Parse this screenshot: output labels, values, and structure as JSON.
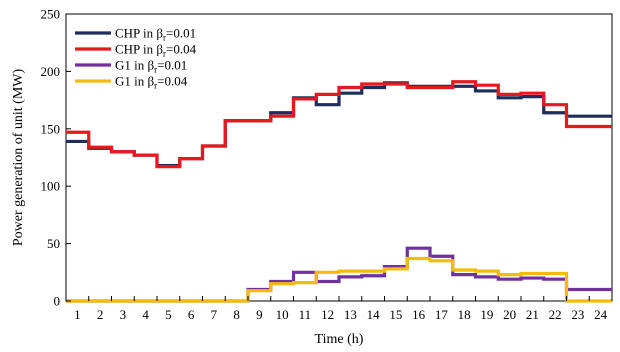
{
  "chart_data": {
    "type": "line",
    "step": true,
    "title": "",
    "xlabel": "Time (h)",
    "ylabel": "Power generation of unit (MW)",
    "xlim": [
      1,
      24
    ],
    "ylim": [
      0,
      250
    ],
    "x_ticks": [
      1,
      2,
      3,
      4,
      5,
      6,
      7,
      8,
      9,
      10,
      11,
      12,
      13,
      14,
      15,
      16,
      17,
      18,
      19,
      20,
      21,
      22,
      23,
      24
    ],
    "y_ticks": [
      0,
      50,
      100,
      150,
      200,
      250
    ],
    "grid": false,
    "legend_position": "top-left",
    "series": [
      {
        "name": "CHP in β",
        "name_sub": "r",
        "name_tail": "=0.01",
        "color": "#1f2d5c",
        "values": [
          139,
          133,
          130,
          127,
          118,
          124,
          135,
          157,
          157,
          164,
          177,
          171,
          181,
          186,
          190,
          187,
          187,
          187,
          183,
          177,
          178,
          164,
          161,
          161
        ]
      },
      {
        "name": "CHP in β",
        "name_sub": "r",
        "name_tail": "=0.04",
        "color": "#e8191e",
        "values": [
          147,
          134,
          130,
          127,
          117,
          124,
          135,
          157,
          157,
          161,
          176,
          180,
          186,
          189,
          189,
          186,
          186,
          191,
          188,
          180,
          181,
          171,
          152,
          152
        ]
      },
      {
        "name": "G1 in β",
        "name_sub": "r",
        "name_tail": "=0.01",
        "color": "#7030a0",
        "values": [
          0,
          0,
          0,
          0,
          0,
          0,
          0,
          0,
          10,
          17,
          25,
          17,
          21,
          22,
          30,
          46,
          39,
          23,
          21,
          19,
          20,
          19,
          10,
          10
        ]
      },
      {
        "name": "G1 in β",
        "name_sub": "r",
        "name_tail": "=0.04",
        "color": "#f5bb0a",
        "values": [
          0,
          0,
          0,
          0,
          0,
          0,
          0,
          0,
          9,
          15,
          16,
          25,
          26,
          26,
          28,
          37,
          35,
          27,
          26,
          23,
          24,
          24,
          0,
          0
        ]
      }
    ]
  }
}
